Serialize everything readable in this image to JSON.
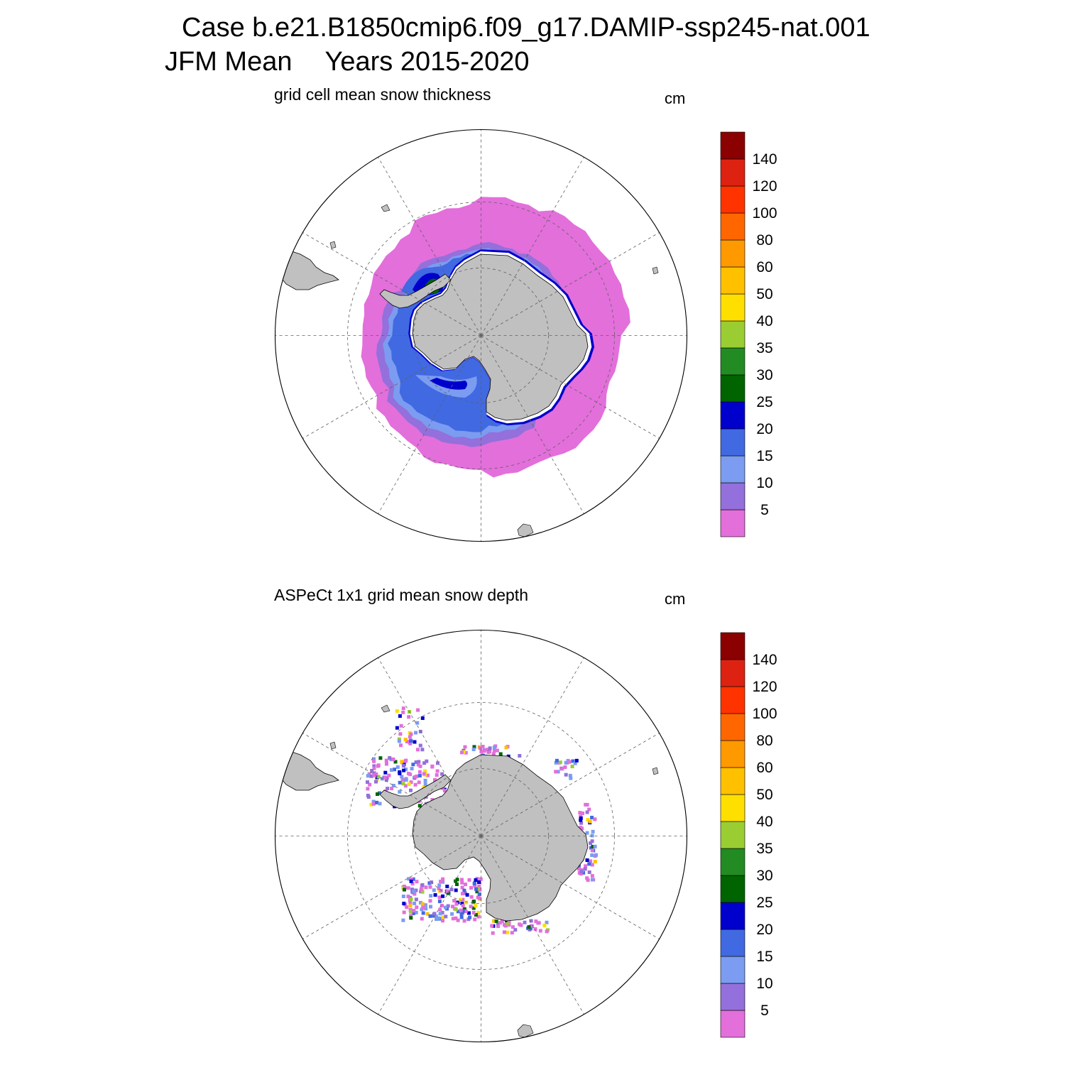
{
  "header": {
    "case_line": "Case b.e21.B1850cmip6.f09_g17.DAMIP-ssp245-nat.001",
    "season": "JFM Mean",
    "years": "Years 2015-2020"
  },
  "colorbar": {
    "levels": [
      5,
      10,
      15,
      20,
      25,
      30,
      35,
      40,
      50,
      60,
      80,
      100,
      120,
      140
    ],
    "labels": [
      "5",
      "10",
      "15",
      "20",
      "25",
      "30",
      "35",
      "40",
      "50",
      "60",
      "80",
      "100",
      "120",
      "140"
    ],
    "colors": [
      "#e36fdb",
      "#9370db",
      "#7b9cf0",
      "#4169e1",
      "#0000cd",
      "#006400",
      "#228b22",
      "#9acd32",
      "#ffdf00",
      "#ffc000",
      "#ff9900",
      "#ff6600",
      "#ff3300",
      "#dd2211",
      "#8b0000"
    ]
  },
  "colors": {
    "land": "#c0c0c0",
    "ocean": "#ffffff",
    "grid": "#606060"
  },
  "panels": [
    {
      "id": "model",
      "title": "grid cell mean snow thickness",
      "unit": "cm",
      "field": "snow thickness (model)"
    },
    {
      "id": "obs",
      "title": "ASPeCt 1x1 grid mean snow depth",
      "unit": "cm",
      "field": "snow depth (ASPeCt observations)"
    }
  ]
}
